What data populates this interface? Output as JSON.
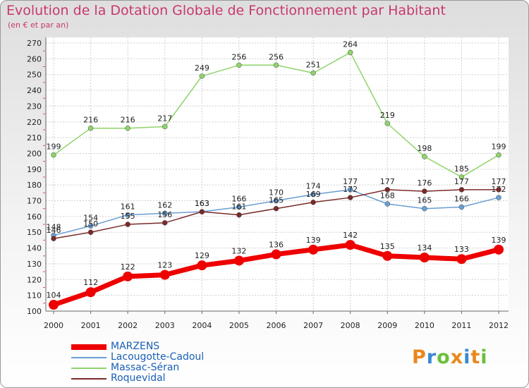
{
  "chart_data": {
    "type": "line",
    "title": "Evolution de la Dotation Globale de Fonctionnement par Habitant",
    "subtitle": "(en € et par an)",
    "categories": [
      "2000",
      "2001",
      "2002",
      "2003",
      "2004",
      "2005",
      "2006",
      "2007",
      "2008",
      "2009",
      "2010",
      "2011",
      "2012"
    ],
    "ylim": [
      100,
      270
    ],
    "yticks": [
      100,
      110,
      120,
      130,
      140,
      150,
      160,
      170,
      180,
      190,
      200,
      210,
      220,
      230,
      240,
      250,
      260,
      270
    ],
    "series": [
      {
        "name": "MARZENS",
        "color": "#ee0000",
        "values": [
          104,
          112,
          122,
          123,
          129,
          132,
          136,
          139,
          142,
          135,
          134,
          133,
          139
        ]
      },
      {
        "name": "Lacougotte-Cadoul",
        "color": "#6a9ed2",
        "values": [
          148,
          154,
          161,
          162,
          163,
          166,
          170,
          174,
          177,
          168,
          165,
          166,
          172
        ]
      },
      {
        "name": "Massac-Séran",
        "color": "#8ed46a",
        "values": [
          199,
          216,
          216,
          217,
          249,
          256,
          256,
          251,
          264,
          219,
          198,
          185,
          199
        ]
      },
      {
        "name": "Roquevidal",
        "color": "#7a2a2a",
        "values": [
          146,
          150,
          155,
          156,
          163,
          161,
          165,
          169,
          172,
          177,
          176,
          177,
          177
        ]
      }
    ]
  },
  "brand": {
    "letters": [
      "P",
      "r",
      "o",
      "x",
      "i",
      "t",
      "i"
    ],
    "colors": [
      "#e8891c",
      "#3a88d2",
      "#6cbf3c",
      "#e8891c",
      "#3a88d2",
      "#e8891c",
      "#6cbf3c"
    ]
  }
}
